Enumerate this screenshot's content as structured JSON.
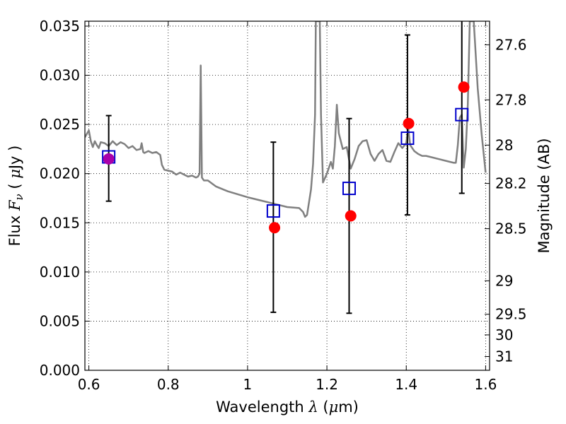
{
  "chart_data": {
    "type": "scatter",
    "x_label_parts": [
      "Wavelength  ",
      "λ",
      " (",
      "μ",
      "m)"
    ],
    "y_label_parts": [
      "Flux  ",
      "F",
      "ν",
      "  ( ",
      "μ",
      "Jy )"
    ],
    "y2_label": "Magnitude (AB)",
    "xlim": [
      0.59,
      1.61
    ],
    "ylim": [
      0.0,
      0.0355
    ],
    "grid": true,
    "x_ticks": [
      0.6,
      0.8,
      1.0,
      1.2,
      1.4,
      1.6
    ],
    "x_tick_labels": [
      "0.6",
      "0.8",
      "1",
      "1.2",
      "1.4",
      "1.6"
    ],
    "y_ticks": [
      0.0,
      0.005,
      0.01,
      0.015,
      0.02,
      0.025,
      0.03,
      0.035
    ],
    "y_tick_labels": [
      "0.000",
      "0.005",
      "0.010",
      "0.015",
      "0.020",
      "0.025",
      "0.030",
      "0.035"
    ],
    "y2_ticks": [
      {
        "label": "27.6",
        "flux": 0.0331
      },
      {
        "label": "27.8",
        "flux": 0.0275
      },
      {
        "label": "28",
        "flux": 0.0229
      },
      {
        "label": "28.2",
        "flux": 0.019
      },
      {
        "label": "28.5",
        "flux": 0.0144
      },
      {
        "label": "29",
        "flux": 0.0091
      },
      {
        "label": "29.5",
        "flux": 0.0057
      },
      {
        "label": "30",
        "flux": 0.0036
      },
      {
        "label": "31",
        "flux": 0.0014
      }
    ],
    "series": [
      {
        "kind": "line",
        "color": "#808080",
        "x": [
          0.59,
          0.6,
          0.605,
          0.61,
          0.615,
          0.62,
          0.625,
          0.63,
          0.64,
          0.65,
          0.66,
          0.67,
          0.68,
          0.69,
          0.7,
          0.71,
          0.72,
          0.73,
          0.733,
          0.737,
          0.74,
          0.75,
          0.76,
          0.77,
          0.78,
          0.784,
          0.79,
          0.8,
          0.81,
          0.82,
          0.83,
          0.84,
          0.85,
          0.86,
          0.87,
          0.875,
          0.879,
          0.882,
          0.885,
          0.89,
          0.9,
          0.92,
          0.95,
          1.0,
          1.05,
          1.1,
          1.13,
          1.14,
          1.145,
          1.15,
          1.16,
          1.165,
          1.17,
          1.172,
          1.175,
          1.178,
          1.182,
          1.185,
          1.19,
          1.2,
          1.21,
          1.215,
          1.22,
          1.225,
          1.23,
          1.24,
          1.25,
          1.26,
          1.27,
          1.28,
          1.29,
          1.3,
          1.31,
          1.32,
          1.33,
          1.34,
          1.35,
          1.36,
          1.37,
          1.38,
          1.39,
          1.4,
          1.405,
          1.41,
          1.42,
          1.43,
          1.44,
          1.45,
          1.46,
          1.48,
          1.5,
          1.52,
          1.525,
          1.53,
          1.535,
          1.54,
          1.545,
          1.55,
          1.555,
          1.56,
          1.57,
          1.58,
          1.59,
          1.6
        ],
        "y": [
          0.0237,
          0.0244,
          0.0233,
          0.0227,
          0.0233,
          0.0229,
          0.0226,
          0.0232,
          0.0231,
          0.0228,
          0.0233,
          0.0229,
          0.0232,
          0.023,
          0.0226,
          0.0228,
          0.0224,
          0.0225,
          0.0231,
          0.0222,
          0.0221,
          0.0223,
          0.0221,
          0.0222,
          0.0219,
          0.0209,
          0.0204,
          0.0203,
          0.0202,
          0.0199,
          0.0201,
          0.0199,
          0.0197,
          0.0198,
          0.0196,
          0.0197,
          0.02,
          0.031,
          0.0196,
          0.0193,
          0.0193,
          0.0187,
          0.0182,
          0.0176,
          0.0171,
          0.0166,
          0.0165,
          0.0161,
          0.0156,
          0.0158,
          0.0184,
          0.021,
          0.026,
          0.0355,
          0.0355,
          0.0355,
          0.0355,
          0.026,
          0.0191,
          0.02,
          0.0212,
          0.0205,
          0.0228,
          0.027,
          0.0241,
          0.0225,
          0.0227,
          0.0205,
          0.0215,
          0.0228,
          0.0233,
          0.0234,
          0.022,
          0.0213,
          0.022,
          0.0224,
          0.0213,
          0.0212,
          0.0222,
          0.0231,
          0.0226,
          0.0231,
          0.0246,
          0.0229,
          0.0223,
          0.022,
          0.0218,
          0.0218,
          0.0217,
          0.0215,
          0.0213,
          0.0211,
          0.0211,
          0.0229,
          0.0257,
          0.026,
          0.0206,
          0.0225,
          0.027,
          0.0355,
          0.0355,
          0.0287,
          0.024,
          0.0201
        ]
      },
      {
        "kind": "points",
        "marker": "circle",
        "color": "#ff0000",
        "x": [
          0.65,
          1.068,
          1.26,
          1.406,
          1.545
        ],
        "y": [
          0.0215,
          0.0145,
          0.0157,
          0.0251,
          0.0288
        ]
      },
      {
        "kind": "points",
        "marker": "open-square",
        "color": "#0000cc",
        "x": [
          0.65,
          1.065,
          1.256,
          1.403,
          1.54
        ],
        "y": [
          0.0217,
          0.0162,
          0.0185,
          0.0236,
          0.026
        ],
        "yerr_low": [
          0.0172,
          0.0059,
          0.0058,
          0.0158,
          0.018
        ],
        "yerr_high": [
          0.0259,
          0.0232,
          0.0256,
          0.0341,
          0.0355
        ]
      }
    ],
    "overlap_color": "#aa00aa"
  }
}
